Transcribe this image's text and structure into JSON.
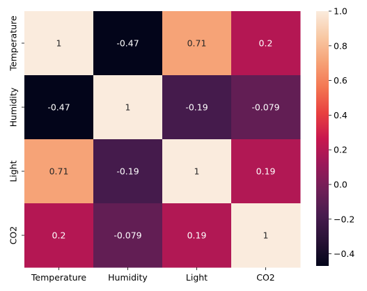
{
  "chart_data": {
    "type": "heatmap",
    "x_categories": [
      "Temperature",
      "Humidity",
      "Light",
      "CO2"
    ],
    "y_categories": [
      "Temperature",
      "Humidity",
      "Light",
      "CO2"
    ],
    "values": [
      [
        1,
        -0.47,
        0.71,
        0.2
      ],
      [
        -0.47,
        1,
        -0.19,
        -0.079
      ],
      [
        0.71,
        -0.19,
        1,
        0.19
      ],
      [
        0.2,
        -0.079,
        0.19,
        1
      ]
    ],
    "annotations": [
      [
        "1",
        "-0.47",
        "0.71",
        "0.2"
      ],
      [
        "-0.47",
        "1",
        "-0.19",
        "-0.079"
      ],
      [
        "0.71",
        "-0.19",
        "1",
        "0.19"
      ],
      [
        "0.2",
        "-0.079",
        "0.19",
        "1"
      ]
    ],
    "colorbar": {
      "min": -0.47,
      "max": 1,
      "ticks": [
        1.0,
        0.8,
        0.6,
        0.4,
        0.2,
        0.0,
        -0.2,
        -0.4
      ],
      "tick_labels": [
        "1.0",
        "0.8",
        "0.6",
        "0.4",
        "0.2",
        "0.0",
        "−0.2",
        "−0.4"
      ]
    },
    "colormap": "rocket",
    "title": "",
    "xlabel": "",
    "ylabel": ""
  }
}
